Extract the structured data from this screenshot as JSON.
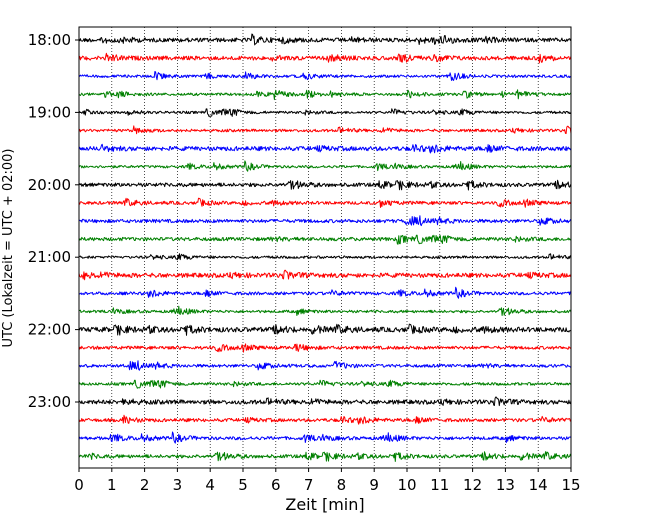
{
  "chart_data": {
    "type": "line",
    "title": "",
    "xlabel": "Zeit  [min]",
    "ylabel": "UTC (Lokalzeit = UTC + 02:00)",
    "xlim": [
      0,
      15
    ],
    "xticks": [
      0,
      1,
      2,
      3,
      4,
      5,
      6,
      7,
      8,
      9,
      10,
      11,
      12,
      13,
      14,
      15
    ],
    "ytick_labels": [
      "18:00",
      "19:00",
      "20:00",
      "21:00",
      "22:00",
      "23:00"
    ],
    "grid_x": true,
    "series": [
      {
        "start": "18:00",
        "color": "#000000"
      },
      {
        "start": "18:15",
        "color": "#ff0000"
      },
      {
        "start": "18:30",
        "color": "#0000ff"
      },
      {
        "start": "18:45",
        "color": "#008000"
      },
      {
        "start": "19:00",
        "color": "#000000"
      },
      {
        "start": "19:15",
        "color": "#ff0000"
      },
      {
        "start": "19:30",
        "color": "#0000ff"
      },
      {
        "start": "19:45",
        "color": "#008000"
      },
      {
        "start": "20:00",
        "color": "#000000"
      },
      {
        "start": "20:15",
        "color": "#ff0000"
      },
      {
        "start": "20:30",
        "color": "#0000ff"
      },
      {
        "start": "20:45",
        "color": "#008000"
      },
      {
        "start": "21:00",
        "color": "#000000"
      },
      {
        "start": "21:15",
        "color": "#ff0000"
      },
      {
        "start": "21:30",
        "color": "#0000ff"
      },
      {
        "start": "21:45",
        "color": "#008000"
      },
      {
        "start": "22:00",
        "color": "#000000"
      },
      {
        "start": "22:15",
        "color": "#ff0000"
      },
      {
        "start": "22:30",
        "color": "#0000ff"
      },
      {
        "start": "22:45",
        "color": "#008000"
      },
      {
        "start": "23:00",
        "color": "#000000"
      },
      {
        "start": "23:15",
        "color": "#ff0000"
      },
      {
        "start": "23:30",
        "color": "#0000ff"
      },
      {
        "start": "23:45",
        "color": "#008000"
      }
    ]
  }
}
